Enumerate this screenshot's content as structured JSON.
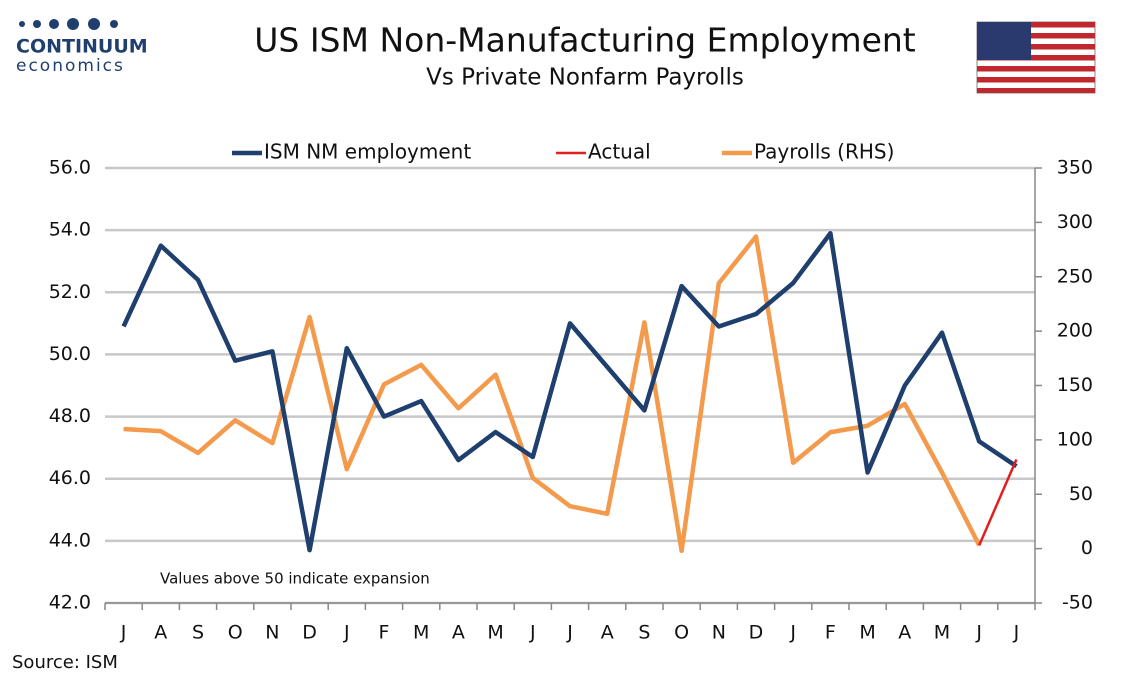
{
  "brand": {
    "name": "CONTINUUM",
    "sub": "economics"
  },
  "chart_data": {
    "type": "line",
    "title": "US ISM Non-Manufacturing Employment",
    "subtitle": "Vs Private Nonfarm Payrolls",
    "annotation": "Values above 50 indicate expansion",
    "source": "Source: ISM",
    "categories": [
      "J",
      "A",
      "S",
      "O",
      "N",
      "D",
      "J",
      "F",
      "M",
      "A",
      "M",
      "J",
      "J",
      "A",
      "S",
      "O",
      "N",
      "D",
      "J",
      "F",
      "M",
      "A",
      "M",
      "J",
      "J"
    ],
    "series": [
      {
        "name": "ISM NM employment",
        "color": "#1f3f6e",
        "values": [
          50.9,
          53.5,
          52.4,
          49.8,
          50.1,
          43.7,
          50.2,
          48.0,
          48.5,
          46.6,
          47.5,
          46.7,
          51.0,
          49.6,
          48.2,
          52.2,
          50.9,
          51.3,
          52.3,
          53.9,
          46.2,
          49.0,
          50.7,
          47.2,
          46.4
        ]
      },
      {
        "name": "Actual",
        "color": "#e02020",
        "axis": "y2",
        "values": [
          null,
          null,
          null,
          null,
          null,
          null,
          null,
          null,
          null,
          null,
          null,
          null,
          null,
          null,
          null,
          null,
          null,
          null,
          null,
          null,
          null,
          null,
          null,
          3,
          82
        ]
      },
      {
        "name": "Payrolls (RHS)",
        "color": "#f39a4c",
        "axis": "y2",
        "values": [
          110,
          108,
          88,
          118,
          97,
          213,
          73,
          151,
          169,
          129,
          160,
          65,
          39,
          32,
          208,
          -2,
          244,
          287,
          79,
          107,
          113,
          133,
          70,
          3,
          null
        ]
      }
    ],
    "ylim": [
      42,
      56
    ],
    "yticks": [
      {
        "value": 42,
        "label": "42.0"
      },
      {
        "value": 44,
        "label": "44.0"
      },
      {
        "value": 46,
        "label": "46.0"
      },
      {
        "value": 48,
        "label": "48.0"
      },
      {
        "value": 50,
        "label": "50.0"
      },
      {
        "value": 52,
        "label": "52.0"
      },
      {
        "value": 54,
        "label": "54.0"
      },
      {
        "value": 56,
        "label": "56.0"
      }
    ],
    "y2lim": [
      -50,
      350
    ],
    "y2ticks": [
      -50,
      0,
      50,
      100,
      150,
      200,
      250,
      300,
      350
    ],
    "grid": true
  }
}
